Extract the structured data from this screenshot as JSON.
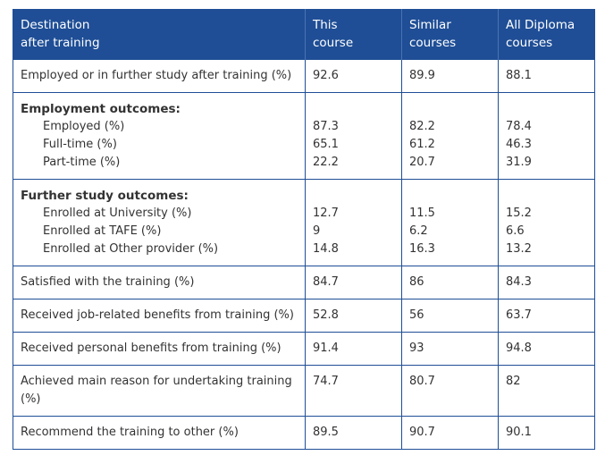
{
  "header": {
    "col1": [
      "Destination",
      "after training"
    ],
    "col2": [
      "This",
      "course"
    ],
    "col3": [
      "Similar",
      "courses"
    ],
    "col4": [
      "All Diploma",
      "courses"
    ]
  },
  "rows": {
    "employed_further": {
      "label": "Employed or in further study after training (%)",
      "this": "92.6",
      "similar": "89.9",
      "all": "88.1"
    },
    "employment": {
      "title": "Employment outcomes:",
      "items": [
        {
          "label": "Employed (%)",
          "this": "87.3",
          "similar": "82.2",
          "all": "78.4"
        },
        {
          "label": "Full-time (%)",
          "this": "65.1",
          "similar": "61.2",
          "all": "46.3"
        },
        {
          "label": "Part-time (%)",
          "this": "22.2",
          "similar": "20.7",
          "all": "31.9"
        }
      ]
    },
    "further_study": {
      "title": "Further study outcomes:",
      "items": [
        {
          "label": "Enrolled at University (%)",
          "this": "12.7",
          "similar": "11.5",
          "all": "15.2"
        },
        {
          "label": "Enrolled at TAFE (%)",
          "this": "9",
          "similar": "6.2",
          "all": "6.6"
        },
        {
          "label": "Enrolled at Other provider (%)",
          "this": "14.8",
          "similar": "16.3",
          "all": "13.2"
        }
      ]
    },
    "satisfied": {
      "label": "Satisfied with the training (%)",
      "this": "84.7",
      "similar": "86",
      "all": "84.3"
    },
    "job_benefits": {
      "label": "Received job-related benefits from training (%)",
      "this": "52.8",
      "similar": "56",
      "all": "63.7"
    },
    "personal_benefits": {
      "label": "Received personal benefits from training (%)",
      "this": "91.4",
      "similar": "93",
      "all": "94.8"
    },
    "main_reason": {
      "label": "Achieved main reason for undertaking training (%)",
      "this": "74.7",
      "similar": "80.7",
      "all": "82"
    },
    "recommend": {
      "label": "Recommend the training to other (%)",
      "this": "89.5",
      "similar": "90.7",
      "all": "90.1"
    }
  }
}
